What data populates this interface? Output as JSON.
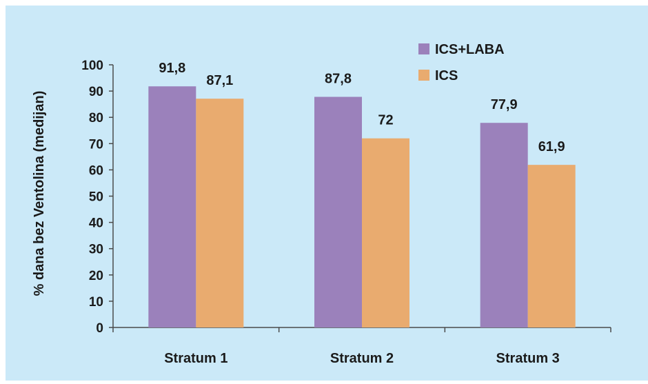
{
  "chart_data": {
    "type": "bar",
    "categories": [
      "Stratum 1",
      "Stratum 2",
      "Stratum 3"
    ],
    "series": [
      {
        "name": "ICS+LABA",
        "values": [
          91.8,
          87.8,
          77.9
        ],
        "labels": [
          "91,8",
          "87,8",
          "77,9"
        ],
        "color": "#9b81bb"
      },
      {
        "name": "ICS",
        "values": [
          87.1,
          72,
          61.9
        ],
        "labels": [
          "87,1",
          "72",
          "61,9"
        ],
        "color": "#e9ab6f"
      }
    ],
    "title": "",
    "xlabel": "",
    "ylabel": "% dana bez Ventolina (medijan)",
    "ylim": [
      0,
      100
    ],
    "yticks": [
      0,
      10,
      20,
      30,
      40,
      50,
      60,
      70,
      80,
      90,
      100
    ],
    "grid": false,
    "legend_position": "top-right"
  },
  "colors": {
    "background": "#cbe9f8",
    "axis": "#4a4a4a"
  }
}
